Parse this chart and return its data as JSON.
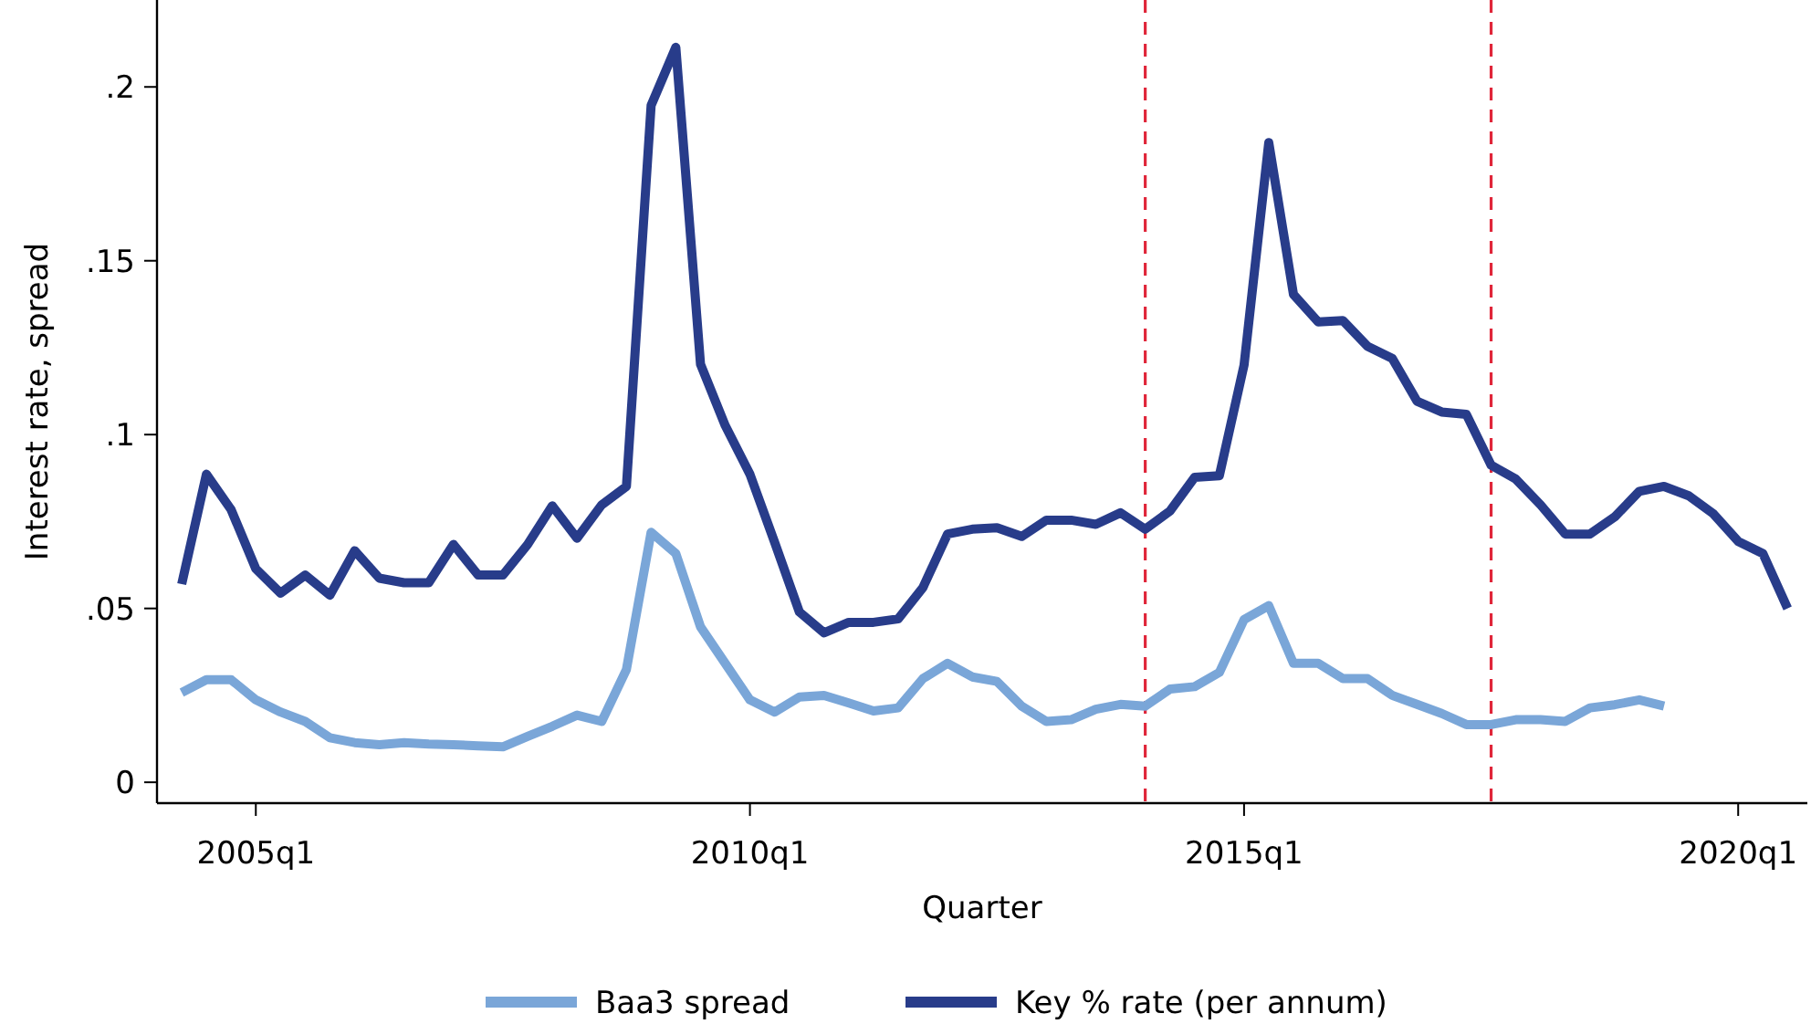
{
  "chart_data": {
    "type": "line",
    "xlabel": "Quarter",
    "ylabel": "Interest rate, spread",
    "categories": [
      null,
      null,
      null,
      "2005q1",
      null,
      null,
      null,
      null,
      null,
      null,
      null,
      null,
      null,
      null,
      null,
      null,
      null,
      null,
      null,
      null,
      null,
      null,
      null,
      "2010q1",
      null,
      null,
      null,
      null,
      null,
      null,
      null,
      null,
      null,
      null,
      null,
      null,
      null,
      null,
      null,
      null,
      null,
      null,
      null,
      "2015q1",
      null,
      null,
      null,
      null,
      null,
      null,
      null,
      null,
      null,
      null,
      null,
      null,
      null,
      null,
      null,
      null,
      null,
      null,
      null,
      "2020q1",
      null,
      null
    ],
    "series": [
      {
        "name": "Baa3 spread",
        "color": "#7aa6d8",
        "values": [
          0.0258,
          0.0295,
          0.0295,
          0.0237,
          0.0202,
          0.0175,
          0.0128,
          0.0114,
          0.0108,
          0.0114,
          0.011,
          0.0108,
          0.0105,
          0.0102,
          0.0132,
          0.0161,
          0.0193,
          0.0175,
          0.0324,
          0.0719,
          0.0658,
          0.0447,
          0.0342,
          0.0237,
          0.0202,
          0.0245,
          0.025,
          0.0228,
          0.0205,
          0.0214,
          0.0298,
          0.0342,
          0.0303,
          0.029,
          0.0219,
          0.0175,
          0.018,
          0.021,
          0.0224,
          0.0219,
          0.0268,
          0.0275,
          0.0316,
          0.0468,
          0.0508,
          0.0342,
          0.0342,
          0.0298,
          0.0298,
          0.025,
          0.0224,
          0.0198,
          0.0166,
          0.0166,
          0.018,
          0.018,
          0.0175,
          0.0214,
          0.0223,
          0.0237,
          0.0219,
          null,
          null,
          null,
          null,
          null
        ]
      },
      {
        "name": "Key % rate (per annum)",
        "color": "#283c8a",
        "values": [
          0.057,
          0.0886,
          0.0784,
          0.0614,
          0.0544,
          0.0596,
          0.0538,
          0.0666,
          0.0587,
          0.0574,
          0.0574,
          0.0684,
          0.0596,
          0.0596,
          0.0684,
          0.0795,
          0.0702,
          0.0798,
          0.0851,
          0.1947,
          0.2114,
          0.1202,
          0.1026,
          0.0886,
          0.069,
          0.049,
          0.043,
          0.046,
          0.046,
          0.047,
          0.056,
          0.0714,
          0.0728,
          0.0732,
          0.0707,
          0.0754,
          0.0754,
          0.0742,
          0.0775,
          0.0728,
          0.078,
          0.0877,
          0.0882,
          0.12,
          0.184,
          0.1403,
          0.1324,
          0.1328,
          0.1254,
          0.1219,
          0.1096,
          0.1065,
          0.1058,
          0.0912,
          0.0872,
          0.0798,
          0.0714,
          0.0714,
          0.0763,
          0.0837,
          0.0851,
          0.0824,
          0.0772,
          0.0693,
          0.0658,
          0.05
        ]
      }
    ],
    "ylim": [
      -0.006,
      0.225
    ],
    "yticks": [
      0,
      {
        "value": 0.05,
        "label": ".05"
      },
      {
        "value": 0.1,
        "label": ".1"
      },
      {
        "value": 0.15,
        "label": ".15"
      },
      {
        "value": 0.2,
        "label": ".2"
      }
    ],
    "legend": "bottom",
    "marker": "none",
    "line_style": "solid"
  }
}
